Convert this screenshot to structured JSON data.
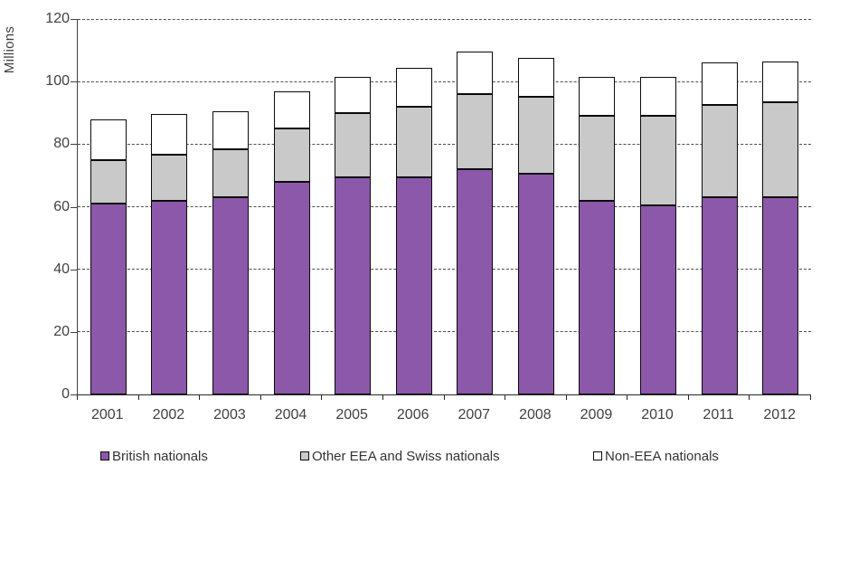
{
  "chart_data": {
    "type": "bar",
    "stacked": true,
    "title": "",
    "ylabel": "Millions",
    "xlabel": "",
    "ylim": [
      0,
      120
    ],
    "yticks": [
      0,
      20,
      40,
      60,
      80,
      100,
      120
    ],
    "grid": "horizontal-dashed",
    "legend_position": "bottom",
    "categories": [
      "2001",
      "2002",
      "2003",
      "2004",
      "2005",
      "2006",
      "2007",
      "2008",
      "2009",
      "2010",
      "2011",
      "2012"
    ],
    "series": [
      {
        "name": "British nationals",
        "color": "#8C58AA",
        "values": [
          61,
          62,
          63,
          68,
          69.5,
          69.5,
          72,
          70.5,
          62,
          60.5,
          63,
          63
        ]
      },
      {
        "name": "Other EEA and Swiss nationals",
        "color": "#C9C9C9",
        "values": [
          14,
          14.5,
          15.5,
          17,
          20.5,
          22.5,
          24,
          24.5,
          27,
          28.5,
          29.5,
          30.5
        ]
      },
      {
        "name": "Non-EEA nationals",
        "color": "#FFFFFF",
        "values": [
          13,
          13,
          12,
          12,
          11.5,
          12.5,
          13.5,
          12.5,
          12.5,
          12.5,
          13.5,
          13
        ]
      }
    ],
    "totals": [
      88,
      89.5,
      90.5,
      97,
      101.5,
      104.5,
      109.5,
      107.5,
      101.5,
      101.5,
      106,
      106.5
    ]
  },
  "colors": {
    "bar_border": "#0a0a0a",
    "gridline": "#4d4d4d",
    "axis": "#404040",
    "text": "#404040",
    "background": "#ffffff"
  }
}
